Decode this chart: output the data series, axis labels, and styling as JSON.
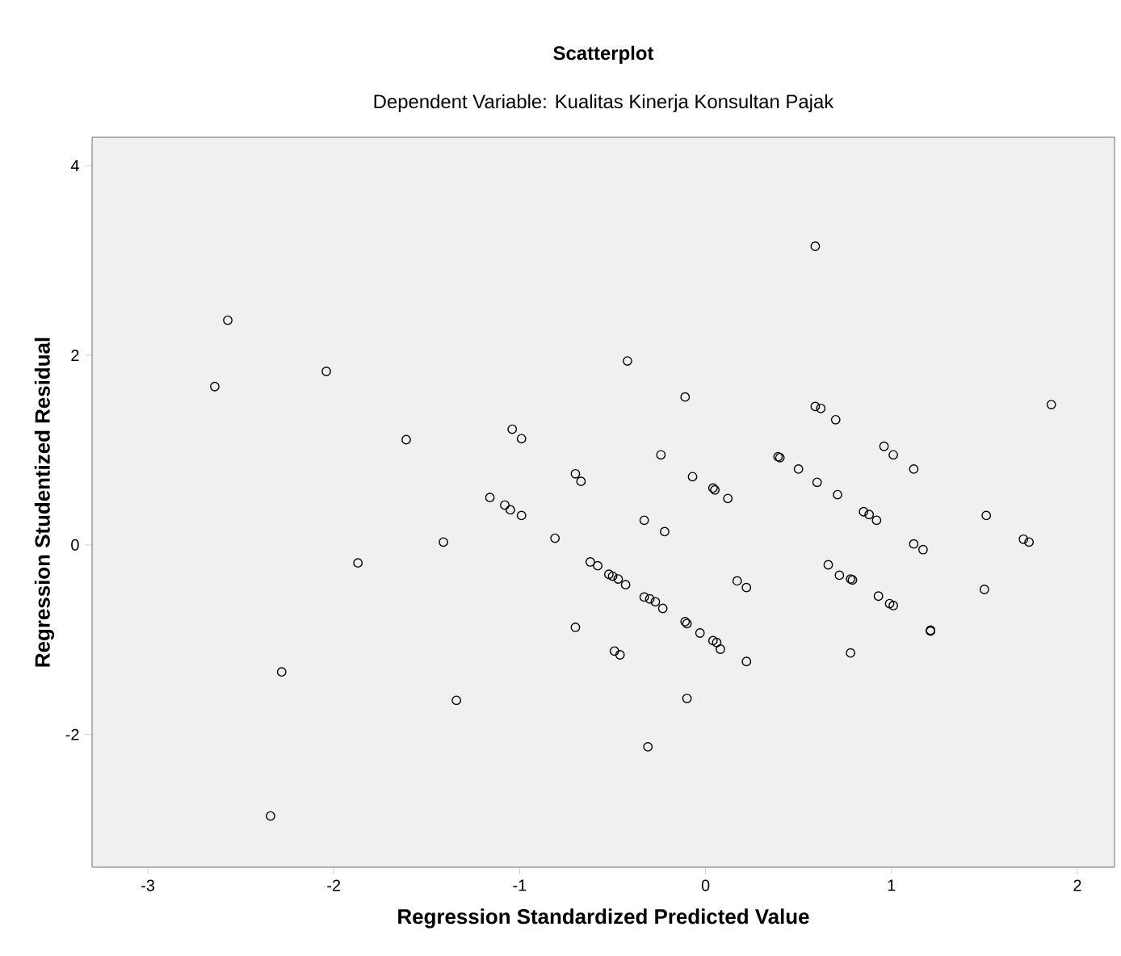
{
  "chart_data": {
    "type": "scatter",
    "title": "Scatterplot",
    "subtitle": "Dependent Variable: Kualitas Kinerja Konsultan Pajak",
    "xlabel": "Regression Standardized Predicted Value",
    "ylabel": "Regression Studentized Residual",
    "xlim": [
      -3.3,
      2.2
    ],
    "ylim": [
      -3.4,
      4.3
    ],
    "xticks": [
      -3,
      -2,
      -1,
      0,
      1,
      2
    ],
    "yticks": [
      -2,
      0,
      2,
      4
    ],
    "grid": false,
    "marker": "circle",
    "series": [
      {
        "color": "#000000",
        "x": [
          -2.57,
          -2.64,
          -2.04,
          -1.61,
          -1.04,
          -0.99,
          -0.7,
          -0.67,
          -1.16,
          -1.08,
          -1.05,
          -0.99,
          -0.81,
          -1.41,
          -1.87,
          -0.62,
          -0.58,
          -0.52,
          -0.5,
          -0.7,
          -0.49,
          -0.46,
          -2.28,
          -1.34,
          -2.34,
          0.59,
          -0.42,
          -0.11,
          1.86,
          0.59,
          0.62,
          0.7,
          0.96,
          1.01,
          1.12,
          -0.24,
          0.39,
          0.4,
          0.5,
          0.6,
          0.71,
          -0.07,
          0.04,
          0.05,
          0.12,
          -0.33,
          -0.22,
          0.85,
          0.88,
          0.92,
          1.51,
          1.71,
          1.74,
          1.12,
          1.17,
          0.66,
          0.72,
          0.78,
          0.79,
          1.5,
          0.17,
          0.22,
          0.93,
          0.99,
          1.01,
          -0.47,
          -0.43,
          -0.33,
          -0.3,
          -0.27,
          -0.23,
          -0.11,
          -0.1,
          -0.03,
          0.04,
          0.06,
          0.08,
          1.21,
          1.21,
          0.22,
          0.78,
          -0.1,
          -0.31
        ],
        "values": [
          2.37,
          1.67,
          1.83,
          1.11,
          1.22,
          1.12,
          0.75,
          0.67,
          0.5,
          0.42,
          0.37,
          0.31,
          0.07,
          0.03,
          -0.19,
          -0.18,
          -0.22,
          -0.31,
          -0.33,
          -0.87,
          -1.12,
          -1.16,
          -1.34,
          -1.64,
          -2.86,
          3.15,
          1.94,
          1.56,
          1.48,
          1.46,
          1.44,
          1.32,
          1.04,
          0.95,
          0.8,
          0.95,
          0.93,
          0.92,
          0.8,
          0.66,
          0.53,
          0.72,
          0.6,
          0.58,
          0.49,
          0.26,
          0.14,
          0.35,
          0.32,
          0.26,
          0.31,
          0.06,
          0.03,
          0.01,
          -0.05,
          -0.21,
          -0.32,
          -0.36,
          -0.37,
          -0.47,
          -0.38,
          -0.45,
          -0.54,
          -0.62,
          -0.64,
          -0.36,
          -0.42,
          -0.55,
          -0.57,
          -0.6,
          -0.67,
          -0.81,
          -0.83,
          -0.93,
          -1.01,
          -1.03,
          -1.1,
          -0.9,
          -0.91,
          -1.23,
          -1.14,
          -1.62,
          -2.13
        ]
      }
    ]
  }
}
